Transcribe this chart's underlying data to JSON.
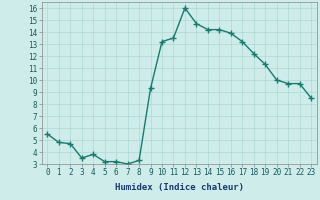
{
  "x": [
    0,
    1,
    2,
    3,
    4,
    5,
    6,
    7,
    8,
    9,
    10,
    11,
    12,
    13,
    14,
    15,
    16,
    17,
    18,
    19,
    20,
    21,
    22,
    23
  ],
  "y": [
    5.5,
    4.8,
    4.7,
    3.5,
    3.8,
    3.2,
    3.2,
    3.0,
    3.3,
    9.3,
    13.2,
    13.5,
    16.0,
    14.7,
    14.2,
    14.2,
    13.9,
    13.2,
    12.2,
    11.3,
    10.0,
    9.7,
    9.7,
    8.5
  ],
  "xlabel": "Humidex (Indice chaleur)",
  "yticks": [
    3,
    4,
    5,
    6,
    7,
    8,
    9,
    10,
    11,
    12,
    13,
    14,
    15,
    16
  ],
  "xticks": [
    0,
    1,
    2,
    3,
    4,
    5,
    6,
    7,
    8,
    9,
    10,
    11,
    12,
    13,
    14,
    15,
    16,
    17,
    18,
    19,
    20,
    21,
    22,
    23
  ],
  "ylim": [
    3,
    16.5
  ],
  "xlim": [
    -0.5,
    23.5
  ],
  "line_color": "#1a7a6e",
  "bg_color": "#ceecea",
  "grid_color": "#aed8d4",
  "marker": "+",
  "marker_size": 4,
  "line_width": 1.0,
  "tick_fontsize": 5.5,
  "xlabel_fontsize": 6.5
}
